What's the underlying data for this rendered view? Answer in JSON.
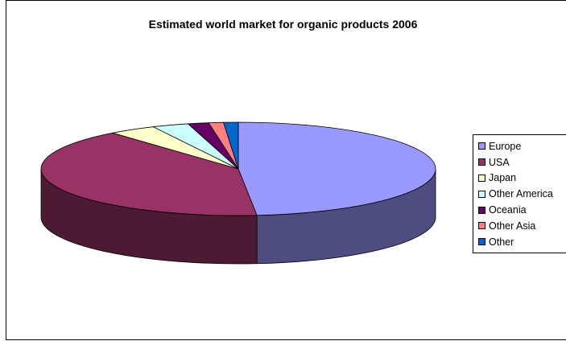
{
  "chart_data": {
    "type": "pie",
    "three_d": true,
    "title": "Estimated world market for organic products 2006",
    "categories": [
      "Europe",
      "USA",
      "Japan",
      "Other America",
      "Oceania",
      "Other Asia",
      "Other"
    ],
    "values": [
      48.5,
      40.5,
      3.9,
      3.0,
      1.7,
      1.2,
      1.2
    ],
    "colors": [
      "#9999ff",
      "#993366",
      "#ffffcc",
      "#ccffff",
      "#660066",
      "#ff8080",
      "#0066cc"
    ],
    "legend_position": "right"
  }
}
